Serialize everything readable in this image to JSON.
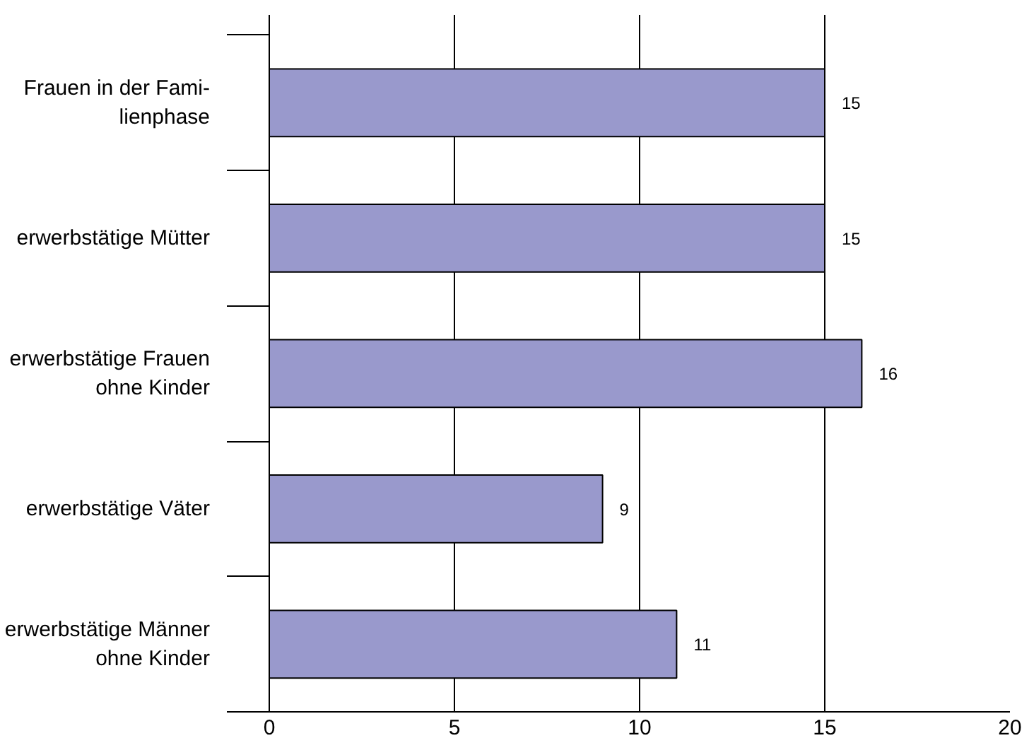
{
  "chart_data": {
    "type": "bar",
    "orientation": "horizontal",
    "categories": [
      "Frauen in der Fami-\nlienphase",
      "erwerbstätige Mütter",
      "erwerbstätige Frauen\nohne Kinder",
      "erwerbstätige Väter",
      "erwerbstätige Männer\nohne Kinder"
    ],
    "values": [
      15,
      15,
      16,
      9,
      11
    ],
    "color": "#9999cc",
    "xlim": [
      0,
      20
    ],
    "xticks": [
      0,
      5,
      10,
      15,
      20
    ],
    "grid": "x",
    "data_labels": true
  }
}
